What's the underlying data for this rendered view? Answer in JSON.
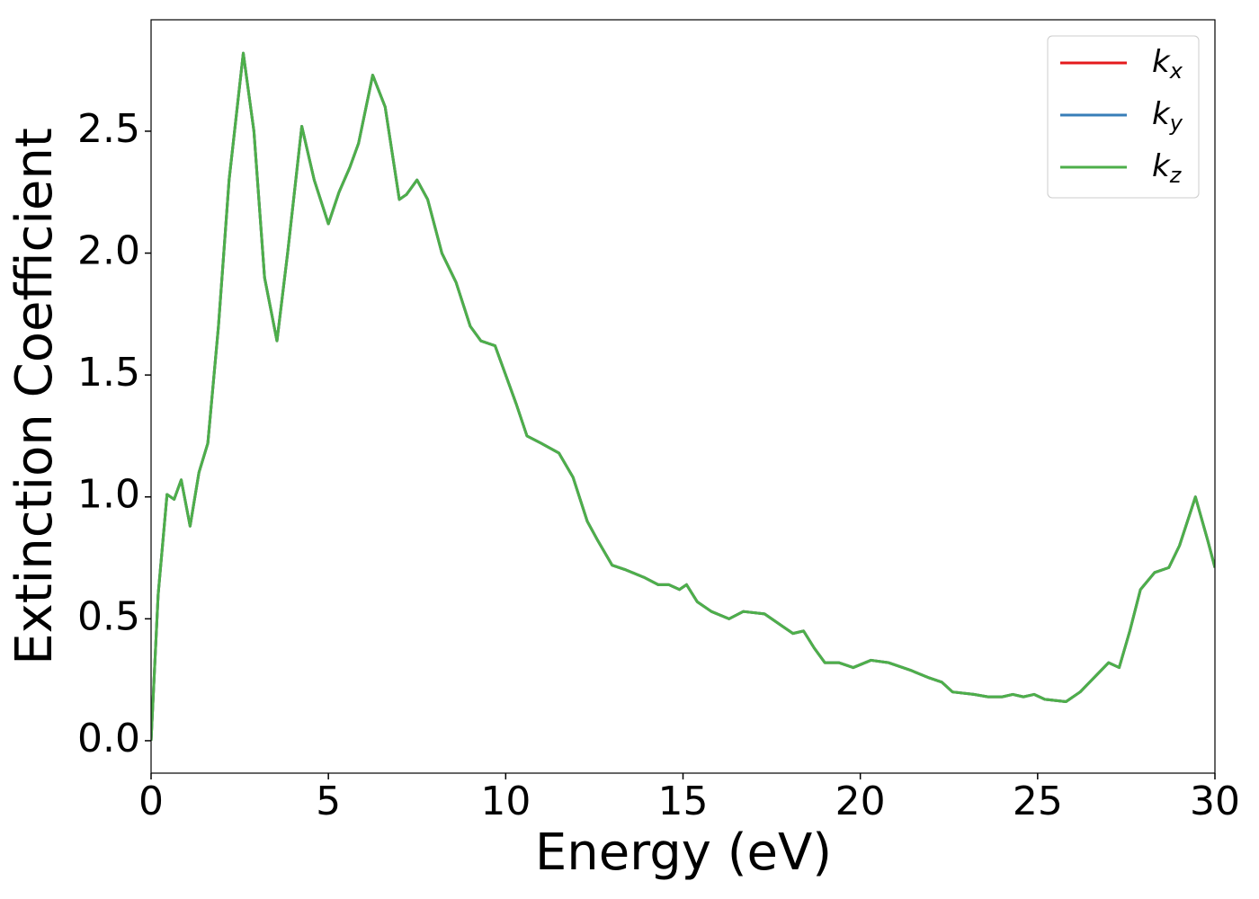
{
  "chart_data": {
    "type": "line",
    "xlabel": "Energy (eV)",
    "ylabel": "Extinction Coefficient",
    "x": [
      0,
      0.2,
      0.45,
      0.65,
      0.85,
      1.1,
      1.35,
      1.6,
      1.9,
      2.2,
      2.6,
      2.9,
      3.2,
      3.55,
      3.85,
      4.25,
      4.6,
      5.0,
      5.3,
      5.6,
      5.85,
      6.25,
      6.6,
      7.0,
      7.2,
      7.5,
      7.8,
      8.2,
      8.6,
      9.0,
      9.3,
      9.7,
      10.0,
      10.3,
      10.6,
      11.0,
      11.5,
      11.9,
      12.3,
      12.6,
      13.0,
      13.4,
      13.9,
      14.3,
      14.6,
      14.9,
      15.1,
      15.4,
      15.8,
      16.3,
      16.7,
      17.3,
      17.8,
      18.1,
      18.4,
      18.7,
      19.0,
      19.4,
      19.8,
      20.3,
      20.8,
      21.4,
      21.9,
      22.3,
      22.6,
      23.2,
      23.6,
      24.0,
      24.3,
      24.6,
      24.9,
      25.2,
      25.8,
      26.2,
      26.6,
      27.0,
      27.3,
      27.6,
      27.9,
      28.3,
      28.7,
      29.0,
      29.45,
      29.8,
      30
    ],
    "series": [
      {
        "name": "kx",
        "color": "#e41a1c",
        "values": [
          0,
          0.6,
          1.01,
          0.99,
          1.07,
          0.88,
          1.1,
          1.22,
          1.7,
          2.3,
          2.82,
          2.5,
          1.9,
          1.64,
          2.0,
          2.52,
          2.3,
          2.12,
          2.25,
          2.35,
          2.45,
          2.73,
          2.6,
          2.22,
          2.24,
          2.3,
          2.22,
          2.0,
          1.88,
          1.7,
          1.64,
          1.62,
          1.5,
          1.38,
          1.25,
          1.22,
          1.18,
          1.08,
          0.9,
          0.82,
          0.72,
          0.7,
          0.67,
          0.64,
          0.64,
          0.62,
          0.64,
          0.57,
          0.53,
          0.5,
          0.53,
          0.52,
          0.47,
          0.44,
          0.45,
          0.38,
          0.32,
          0.32,
          0.3,
          0.33,
          0.32,
          0.29,
          0.26,
          0.24,
          0.2,
          0.19,
          0.18,
          0.18,
          0.19,
          0.18,
          0.19,
          0.17,
          0.16,
          0.2,
          0.26,
          0.32,
          0.3,
          0.45,
          0.62,
          0.69,
          0.71,
          0.8,
          1.0,
          0.82,
          0.71
        ]
      },
      {
        "name": "ky",
        "color": "#377eb8",
        "values": [
          0,
          0.6,
          1.01,
          0.99,
          1.07,
          0.88,
          1.1,
          1.22,
          1.7,
          2.3,
          2.82,
          2.5,
          1.9,
          1.64,
          2.0,
          2.52,
          2.3,
          2.12,
          2.25,
          2.35,
          2.45,
          2.73,
          2.6,
          2.22,
          2.24,
          2.3,
          2.22,
          2.0,
          1.88,
          1.7,
          1.64,
          1.62,
          1.5,
          1.38,
          1.25,
          1.22,
          1.18,
          1.08,
          0.9,
          0.82,
          0.72,
          0.7,
          0.67,
          0.64,
          0.64,
          0.62,
          0.64,
          0.57,
          0.53,
          0.5,
          0.53,
          0.52,
          0.47,
          0.44,
          0.45,
          0.38,
          0.32,
          0.32,
          0.3,
          0.33,
          0.32,
          0.29,
          0.26,
          0.24,
          0.2,
          0.19,
          0.18,
          0.18,
          0.19,
          0.18,
          0.19,
          0.17,
          0.16,
          0.2,
          0.26,
          0.32,
          0.3,
          0.45,
          0.62,
          0.69,
          0.71,
          0.8,
          1.0,
          0.82,
          0.71
        ]
      },
      {
        "name": "kz",
        "color": "#4daf4a",
        "values": [
          0,
          0.6,
          1.01,
          0.99,
          1.07,
          0.88,
          1.1,
          1.22,
          1.7,
          2.3,
          2.82,
          2.5,
          1.9,
          1.64,
          2.0,
          2.52,
          2.3,
          2.12,
          2.25,
          2.35,
          2.45,
          2.73,
          2.6,
          2.22,
          2.24,
          2.3,
          2.22,
          2.0,
          1.88,
          1.7,
          1.64,
          1.62,
          1.5,
          1.38,
          1.25,
          1.22,
          1.18,
          1.08,
          0.9,
          0.82,
          0.72,
          0.7,
          0.67,
          0.64,
          0.64,
          0.62,
          0.64,
          0.57,
          0.53,
          0.5,
          0.53,
          0.52,
          0.47,
          0.44,
          0.45,
          0.38,
          0.32,
          0.32,
          0.3,
          0.33,
          0.32,
          0.29,
          0.26,
          0.24,
          0.2,
          0.19,
          0.18,
          0.18,
          0.19,
          0.18,
          0.19,
          0.17,
          0.16,
          0.2,
          0.26,
          0.32,
          0.3,
          0.45,
          0.62,
          0.69,
          0.71,
          0.8,
          1.0,
          0.82,
          0.71
        ]
      }
    ],
    "xlim": [
      0,
      30
    ],
    "xticks": [
      0,
      5,
      10,
      15,
      20,
      25,
      30
    ],
    "ylim": [
      -0.133,
      2.957
    ],
    "yticks": [
      {
        "value": 0,
        "label": "0.0"
      },
      {
        "value": 0.5,
        "label": "0.5"
      },
      {
        "value": 1,
        "label": "1.0"
      },
      {
        "value": 1.5,
        "label": "1.5"
      },
      {
        "value": 2,
        "label": "2.0"
      },
      {
        "value": 2.5,
        "label": "2.5"
      }
    ],
    "legend": "upper right",
    "grid": false
  }
}
